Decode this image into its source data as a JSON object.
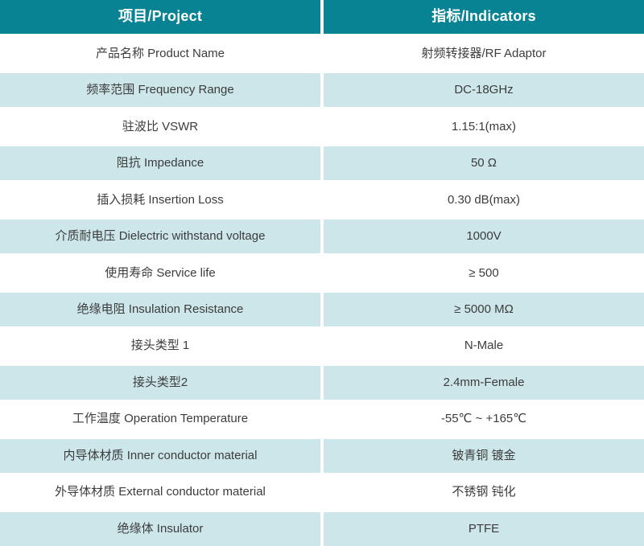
{
  "table": {
    "header": {
      "project": "项目/Project",
      "indicator": "指标/Indicators"
    },
    "rows": [
      {
        "project": "产品名称 Product Name",
        "indicator": "射频转接器/RF Adaptor"
      },
      {
        "project": "频率范围 Frequency Range",
        "indicator": "DC-18GHz"
      },
      {
        "project": "驻波比 VSWR",
        "indicator": "1.15:1(max)"
      },
      {
        "project": "阻抗 Impedance",
        "indicator": "50 Ω"
      },
      {
        "project": "插入损耗 Insertion Loss",
        "indicator": "0.30 dB(max)"
      },
      {
        "project": "介质耐电压 Dielectric withstand voltage",
        "indicator": "1000V"
      },
      {
        "project": "使用寿命 Service life",
        "indicator": "≥ 500"
      },
      {
        "project": "绝缘电阻 Insulation Resistance",
        "indicator": "≥ 5000 MΩ"
      },
      {
        "project": "接头类型 1",
        "indicator": "N-Male"
      },
      {
        "project": "接头类型2",
        "indicator": "2.4mm-Female"
      },
      {
        "project": "工作温度 Operation Temperature",
        "indicator": "-55℃ ~ +165℃"
      },
      {
        "project": "内导体材质 Inner conductor material",
        "indicator": "铍青铜 镀金"
      },
      {
        "project": "外导体材质 External conductor material",
        "indicator": "不锈钢 钝化"
      },
      {
        "project": "绝缘体 Insulator",
        "indicator": "PTFE"
      }
    ]
  },
  "colors": {
    "header_bg": "#088394",
    "header_text": "#ffffff",
    "row_bg": "#ffffff",
    "row_alt_bg": "#cde6ea",
    "separator": "#ffffff",
    "text": "#3c3c3c"
  }
}
